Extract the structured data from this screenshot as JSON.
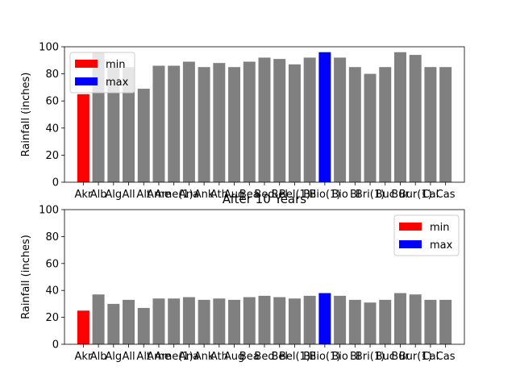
{
  "chart_data": [
    {
      "type": "bar",
      "title": "",
      "xlabel": "",
      "ylabel": "Rainfall (inches)",
      "ylim": [
        0,
        100
      ],
      "yticks": [
        0,
        20,
        40,
        60,
        80,
        100
      ],
      "grid": false,
      "legend_position": "top-left",
      "categories": [
        "Akr",
        "Alb",
        "Alg",
        "All",
        "Alt",
        "Ame",
        "Ame(1)",
        "Ana",
        "Ank",
        "Ath",
        "Aug",
        "Bea",
        "Bed",
        "Bel",
        "Bel(1)",
        "Bil",
        "Bio(1)",
        "Bio",
        "Bl",
        "Bri(1)",
        "Buc",
        "Bur",
        "Bur(1)",
        "Cal",
        "Cas"
      ],
      "values": [
        65,
        96,
        85,
        85,
        69,
        86,
        86,
        89,
        85,
        88,
        85,
        89,
        92,
        91,
        87,
        92,
        96,
        92,
        85,
        80,
        85,
        96,
        94,
        85,
        85
      ],
      "series": [
        {
          "name": "min",
          "color": "#ff0000"
        },
        {
          "name": "max",
          "color": "#0000ff"
        }
      ],
      "min_index": 0,
      "max_index": 16
    },
    {
      "type": "bar",
      "title": "After 10 Years",
      "xlabel": "",
      "ylabel": "Rainfall (inches)",
      "ylim": [
        0,
        100
      ],
      "yticks": [
        0,
        20,
        40,
        60,
        80,
        100
      ],
      "grid": false,
      "legend_position": "top-right",
      "categories": [
        "Akr",
        "Alb",
        "Alg",
        "All",
        "Alt",
        "Ame",
        "Ame(1)",
        "Ana",
        "Ank",
        "Ath",
        "Aug",
        "Bea",
        "Bed",
        "Bel",
        "Bel(1)",
        "Bil",
        "Bio(1)",
        "Bio",
        "Bl",
        "Bri(1)",
        "Buc",
        "Bur",
        "Bur(1)",
        "Cal",
        "Cas"
      ],
      "values": [
        25,
        37,
        30,
        33,
        27,
        34,
        34,
        35,
        33,
        34,
        33,
        35,
        36,
        35,
        34,
        36,
        38,
        36,
        33,
        31,
        33,
        38,
        37,
        33,
        33
      ],
      "series": [
        {
          "name": "min",
          "color": "#ff0000"
        },
        {
          "name": "max",
          "color": "#0000ff"
        }
      ],
      "min_index": 0,
      "max_index": 16
    }
  ],
  "colors": {
    "default_bar": "#808080",
    "min_bar": "#ff0000",
    "max_bar": "#0000ff",
    "axis": "#000000"
  }
}
